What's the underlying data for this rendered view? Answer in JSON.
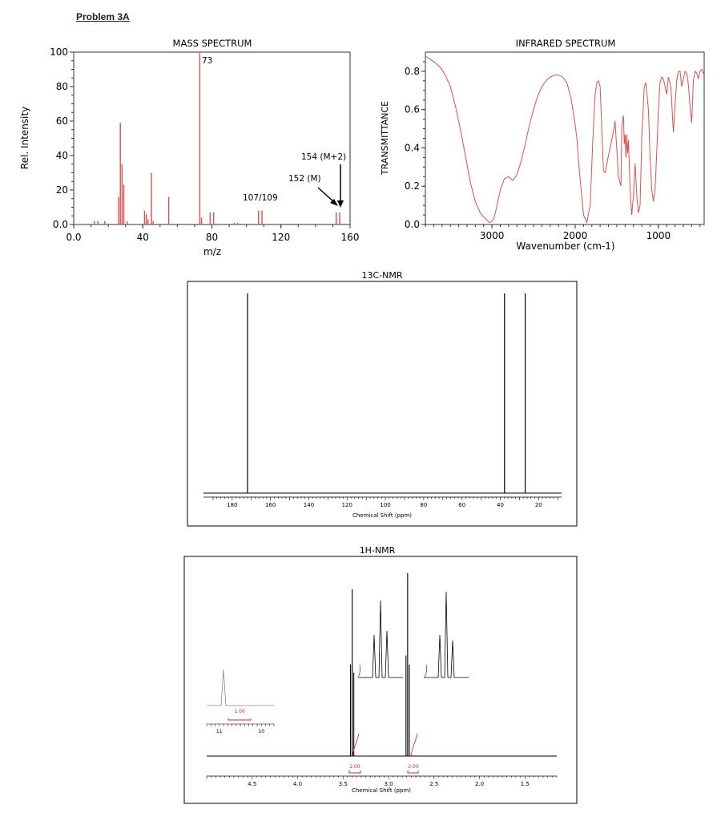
{
  "problem_title": "Problem 3A",
  "colors": {
    "spectrum_red": "#e05050",
    "nmr_black": "#000000",
    "integration_red": "#e02020"
  },
  "chart_data": [
    {
      "id": "mass",
      "type": "bar",
      "title": "MASS SPECTRUM",
      "xlabel": "m/z",
      "ylabel": "Rel. Intensity",
      "xlim": [
        0,
        160
      ],
      "ylim": [
        0,
        100
      ],
      "xticks": [
        "0.0",
        "40",
        "80",
        "120",
        "160"
      ],
      "yticks": [
        "0.0",
        "20",
        "40",
        "60",
        "80",
        "100"
      ],
      "peaks": [
        {
          "x": 12,
          "y": 2
        },
        {
          "x": 14,
          "y": 2
        },
        {
          "x": 18,
          "y": 2
        },
        {
          "x": 26,
          "y": 16
        },
        {
          "x": 27,
          "y": 59
        },
        {
          "x": 28,
          "y": 35
        },
        {
          "x": 29,
          "y": 23
        },
        {
          "x": 31,
          "y": 2
        },
        {
          "x": 41,
          "y": 8
        },
        {
          "x": 42,
          "y": 6
        },
        {
          "x": 43,
          "y": 3
        },
        {
          "x": 45,
          "y": 30
        },
        {
          "x": 46,
          "y": 2
        },
        {
          "x": 55,
          "y": 16
        },
        {
          "x": 73,
          "y": 100
        },
        {
          "x": 74,
          "y": 4
        },
        {
          "x": 79,
          "y": 7
        },
        {
          "x": 81,
          "y": 7
        },
        {
          "x": 93,
          "y": 1
        },
        {
          "x": 95,
          "y": 1
        },
        {
          "x": 107,
          "y": 8
        },
        {
          "x": 109,
          "y": 8
        },
        {
          "x": 152,
          "y": 7
        },
        {
          "x": 154,
          "y": 7
        }
      ],
      "annotations": [
        "73",
        "107/109",
        "152 (M)",
        "154 (M+2)"
      ]
    },
    {
      "id": "ir",
      "type": "line",
      "title": "INFRARED SPECTRUM",
      "xlabel": "Wavenumber (cm-1)",
      "ylabel": "TRANSMITTANCE",
      "xlim": [
        3800,
        450
      ],
      "ylim": [
        0,
        0.9
      ],
      "xticks": [
        "3000",
        "2000",
        "1000"
      ],
      "yticks": [
        "0.0",
        "0.2",
        "0.4",
        "0.6",
        "0.8"
      ],
      "x": [
        3800,
        3700,
        3620,
        3560,
        3500,
        3440,
        3380,
        3320,
        3260,
        3200,
        3140,
        3080,
        3030,
        2990,
        2960,
        2930,
        2900,
        2850,
        2800,
        2750,
        2700,
        2650,
        2600,
        2550,
        2500,
        2450,
        2400,
        2350,
        2300,
        2250,
        2200,
        2150,
        2100,
        2050,
        2000,
        1980,
        1950,
        1900,
        1860,
        1820,
        1790,
        1760,
        1740,
        1720,
        1700,
        1680,
        1660,
        1640,
        1600,
        1560,
        1520,
        1480,
        1450,
        1440,
        1420,
        1410,
        1400,
        1390,
        1380,
        1370,
        1360,
        1340,
        1320,
        1300,
        1280,
        1260,
        1240,
        1220,
        1200,
        1170,
        1150,
        1120,
        1100,
        1080,
        1060,
        1040,
        1020,
        1000,
        980,
        960,
        940,
        920,
        900,
        880,
        850,
        820,
        800,
        780,
        760,
        740,
        720,
        700,
        680,
        660,
        640,
        620,
        600,
        580,
        560,
        540,
        520,
        500,
        480,
        460,
        450
      ],
      "y": [
        0.88,
        0.85,
        0.82,
        0.78,
        0.72,
        0.62,
        0.5,
        0.36,
        0.22,
        0.12,
        0.06,
        0.03,
        0.01,
        0.02,
        0.06,
        0.12,
        0.18,
        0.24,
        0.25,
        0.23,
        0.26,
        0.33,
        0.42,
        0.52,
        0.6,
        0.67,
        0.72,
        0.75,
        0.77,
        0.78,
        0.78,
        0.77,
        0.74,
        0.66,
        0.52,
        0.45,
        0.28,
        0.05,
        0.01,
        0.1,
        0.42,
        0.68,
        0.74,
        0.75,
        0.72,
        0.5,
        0.28,
        0.27,
        0.36,
        0.44,
        0.54,
        0.25,
        0.2,
        0.52,
        0.57,
        0.42,
        0.47,
        0.35,
        0.47,
        0.37,
        0.44,
        0.18,
        0.05,
        0.15,
        0.32,
        0.15,
        0.06,
        0.1,
        0.45,
        0.72,
        0.74,
        0.6,
        0.35,
        0.18,
        0.12,
        0.18,
        0.38,
        0.6,
        0.74,
        0.77,
        0.76,
        0.72,
        0.68,
        0.77,
        0.72,
        0.48,
        0.62,
        0.75,
        0.8,
        0.8,
        0.72,
        0.76,
        0.8,
        0.79,
        0.73,
        0.62,
        0.53,
        0.75,
        0.8,
        0.79,
        0.76,
        0.8,
        0.81,
        0.79,
        0.78
      ]
    },
    {
      "id": "c13",
      "type": "line",
      "title": "13C-NMR",
      "xlabel": "Chemical Shift (ppm)",
      "xlim": [
        195,
        8
      ],
      "xticks": [
        "180",
        "160",
        "140",
        "120",
        "100",
        "80",
        "60",
        "40",
        "20"
      ],
      "peaks": [
        {
          "ppm": 172.0,
          "height": 1.0
        },
        {
          "ppm": 37.8,
          "height": 1.0
        },
        {
          "ppm": 27.0,
          "height": 1.0
        }
      ]
    },
    {
      "id": "h1",
      "type": "line",
      "title": "1H-NMR",
      "xlabel": "Chemical Shift (ppm)",
      "xlim": [
        5.0,
        1.15
      ],
      "xticks": [
        "4.5",
        "4.0",
        "3.5",
        "3.0",
        "2.5",
        "2.0",
        "1.5"
      ],
      "signals": [
        {
          "ppm": 3.4,
          "multiplet": "triplet",
          "integration": "2.00"
        },
        {
          "ppm": 2.79,
          "multiplet": "triplet",
          "integration": "2.00"
        },
        {
          "ppm": 10.9,
          "multiplet": "singlet",
          "integration": "1.00",
          "inset": true
        }
      ],
      "inset_xlim": [
        11.3,
        9.7
      ],
      "inset_xticks": [
        "11",
        "10"
      ]
    }
  ]
}
